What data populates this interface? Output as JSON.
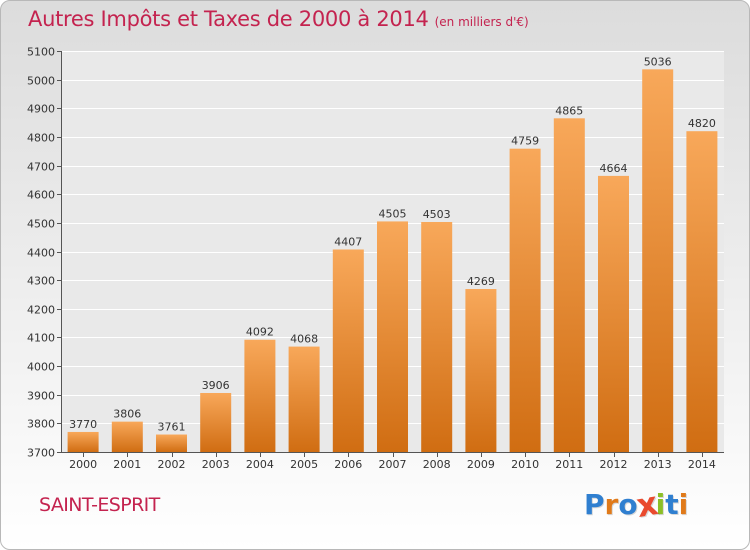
{
  "header": {
    "title": "Autres Impôts et Taxes de 2000 à 2014",
    "subtitle": "(en milliers d'€)"
  },
  "footer": {
    "place": "SAINT-ESPRIT",
    "logo": "Proxiti"
  },
  "colors": {
    "title": "#c4234f",
    "bar_light": "#f8a85a",
    "bar_dark": "#d06d12",
    "logo_letters": [
      "#2f7fd0",
      "#e07a1a",
      "#2f7fd0",
      "#e94a2e",
      "#8cbf26",
      "#2f7fd0",
      "#e07a1a"
    ]
  },
  "chart_data": {
    "type": "bar",
    "title": "Autres Impôts et Taxes de 2000 à 2014",
    "subtitle": "(en milliers d'€)",
    "categories": [
      "2000",
      "2001",
      "2002",
      "2003",
      "2004",
      "2005",
      "2006",
      "2007",
      "2008",
      "2009",
      "2010",
      "2011",
      "2012",
      "2013",
      "2014"
    ],
    "values": [
      3770,
      3806,
      3761,
      3906,
      4092,
      4068,
      4407,
      4505,
      4503,
      4269,
      4759,
      4865,
      4664,
      5036,
      4820
    ],
    "ylim": [
      3700,
      5100
    ],
    "yticks": [
      3700,
      3800,
      3900,
      4000,
      4100,
      4200,
      4300,
      4400,
      4500,
      4600,
      4700,
      4800,
      4900,
      5000,
      5100
    ],
    "grid": true,
    "data_labels": true
  }
}
